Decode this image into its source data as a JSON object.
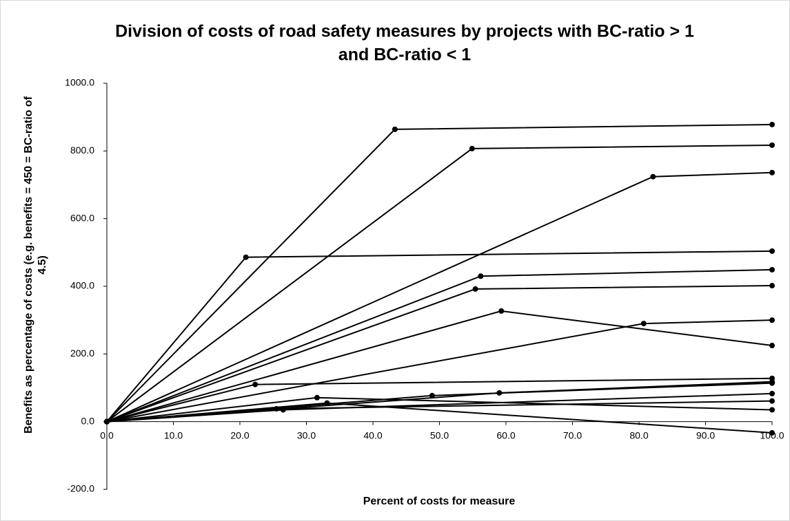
{
  "chart_data": {
    "type": "line",
    "title": [
      "Division of costs of road safety measures by projects with BC-ratio > 1",
      "and BC-ratio < 1"
    ],
    "xlabel": "Percent of costs for measure",
    "ylabel": [
      "Benefits as percentage of costs (e.g. benefits = 450 = BC-ratio of",
      "4.5)"
    ],
    "xlim": [
      0,
      100
    ],
    "xticks": [
      {
        "value": 0,
        "label": "0.0"
      },
      {
        "value": 10,
        "label": "10.0"
      },
      {
        "value": 20,
        "label": "20.0"
      },
      {
        "value": 30,
        "label": "30.0"
      },
      {
        "value": 40,
        "label": "40.0"
      },
      {
        "value": 50,
        "label": "50.0"
      },
      {
        "value": 60,
        "label": "60.0"
      },
      {
        "value": 70,
        "label": "70.0"
      },
      {
        "value": 80,
        "label": "80.0"
      },
      {
        "value": 90,
        "label": "90.0"
      },
      {
        "value": 100,
        "label": "100.0"
      }
    ],
    "ylim": [
      -200,
      1000
    ],
    "yticks": [
      {
        "value": -200,
        "label": "-200.0"
      },
      {
        "value": 0,
        "label": "0.0"
      },
      {
        "value": 200,
        "label": "200.0"
      },
      {
        "value": 400,
        "label": "400.0"
      },
      {
        "value": 600,
        "label": "600.0"
      },
      {
        "value": 800,
        "label": "800.0"
      },
      {
        "value": 1000,
        "label": "1000.0"
      }
    ],
    "color": "#000000",
    "series": [
      {
        "x": [
          0,
          43.3,
          100
        ],
        "values": [
          0,
          864,
          878
        ]
      },
      {
        "x": [
          0,
          54.9,
          100
        ],
        "values": [
          0,
          807,
          817
        ]
      },
      {
        "x": [
          0,
          82.1,
          100
        ],
        "values": [
          0,
          724,
          736
        ]
      },
      {
        "x": [
          0,
          20.9,
          100
        ],
        "values": [
          0,
          486,
          504
        ]
      },
      {
        "x": [
          0,
          56.2,
          100
        ],
        "values": [
          0,
          430,
          449
        ]
      },
      {
        "x": [
          0,
          55.4,
          100
        ],
        "values": [
          0,
          392,
          402
        ]
      },
      {
        "x": [
          0,
          59.3,
          100
        ],
        "values": [
          0,
          327,
          225
        ]
      },
      {
        "x": [
          0,
          80.7,
          100
        ],
        "values": [
          0,
          290,
          300
        ]
      },
      {
        "x": [
          0,
          22.3,
          100
        ],
        "values": [
          0,
          110,
          128
        ]
      },
      {
        "x": [
          0,
          48.9,
          100
        ],
        "values": [
          0,
          77,
          114
        ]
      },
      {
        "x": [
          0,
          59,
          100
        ],
        "values": [
          0,
          85,
          118
        ]
      },
      {
        "x": [
          0,
          31.6,
          100
        ],
        "values": [
          0,
          71,
          35
        ]
      },
      {
        "x": [
          0,
          33.1,
          100
        ],
        "values": [
          0,
          55,
          -33
        ]
      },
      {
        "x": [
          0,
          26.5,
          100
        ],
        "values": [
          0,
          35,
          83
        ]
      },
      {
        "x": [
          0,
          25.5,
          100
        ],
        "values": [
          0,
          38,
          61
        ]
      }
    ]
  }
}
